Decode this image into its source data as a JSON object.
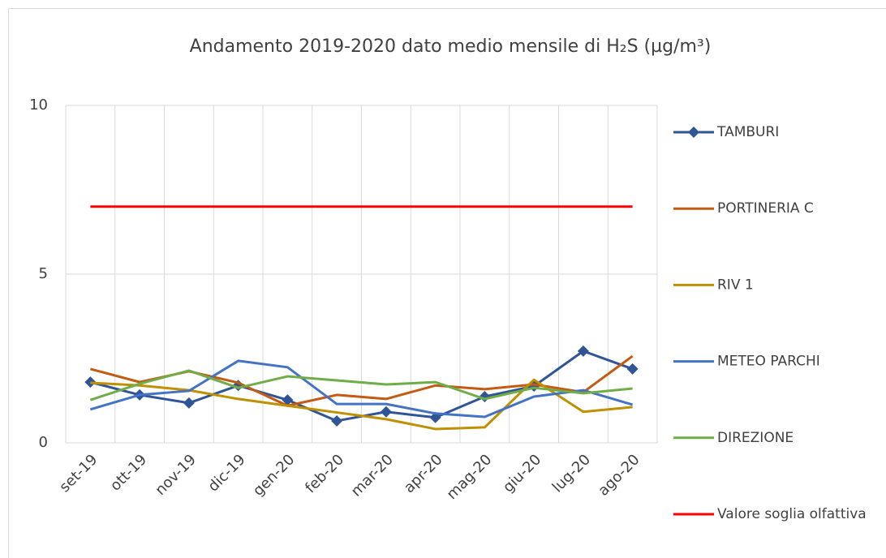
{
  "chart_data": {
    "type": "line",
    "title": "Andamento 2019-2020 dato medio mensile di H₂S (µg/m³)",
    "categories": [
      "set-19",
      "ott-19",
      "nov-19",
      "dic-19",
      "gen-20",
      "feb-20",
      "mar-20",
      "apr-20",
      "mag-20",
      "giu-20",
      "lug-20",
      "ago-20"
    ],
    "series": [
      {
        "name": "TAMBURI",
        "color": "#2f5597",
        "marker": "diamond",
        "values": [
          1.8,
          1.42,
          1.18,
          1.7,
          1.27,
          0.65,
          0.92,
          0.75,
          1.37,
          1.68,
          2.72,
          2.19
        ]
      },
      {
        "name": "PORTINERIA C",
        "color": "#c55a11",
        "values": [
          2.19,
          1.8,
          2.12,
          1.78,
          1.1,
          1.42,
          1.3,
          1.7,
          1.59,
          1.73,
          1.5,
          2.57
        ]
      },
      {
        "name": "RIV 1",
        "color": "#bf9000",
        "values": [
          1.78,
          1.7,
          1.56,
          1.3,
          1.1,
          0.9,
          0.7,
          0.41,
          0.46,
          1.87,
          0.92,
          1.06
        ]
      },
      {
        "name": "METEO PARCHI",
        "color": "#4472c4",
        "values": [
          0.99,
          1.42,
          1.54,
          2.43,
          2.24,
          1.15,
          1.15,
          0.87,
          0.77,
          1.37,
          1.56,
          1.13
        ]
      },
      {
        "name": "DIREZIONE",
        "color": "#70ad47",
        "values": [
          1.27,
          1.75,
          2.14,
          1.63,
          1.97,
          1.85,
          1.73,
          1.8,
          1.3,
          1.63,
          1.47,
          1.61
        ]
      },
      {
        "name": "Valore soglia olfattiva",
        "color": "#ff0000",
        "values": [
          7,
          7,
          7,
          7,
          7,
          7,
          7,
          7,
          7,
          7,
          7,
          7
        ]
      }
    ],
    "ylim": [
      0,
      10
    ],
    "yticks": [
      0,
      5,
      10
    ],
    "grid": true,
    "legend": "right"
  }
}
